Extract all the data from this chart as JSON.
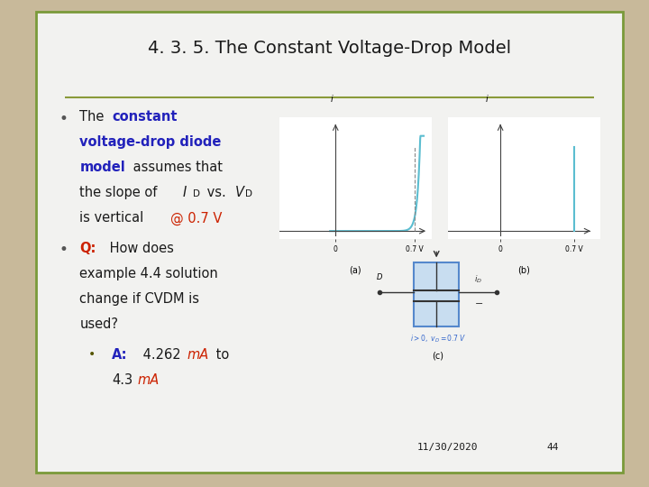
{
  "title": "4. 3. 5. The Constant Voltage-Drop Model",
  "background_slide": "#c8b99a",
  "background_card": "#f2f2f0",
  "border_color": "#7a9a3a",
  "title_color": "#1a1a1a",
  "title_fontsize": 14,
  "date_text": "11/30/2020",
  "page_num": "44",
  "diode_curve_color": "#5bbdd0",
  "separator_color": "#8a9a3a"
}
